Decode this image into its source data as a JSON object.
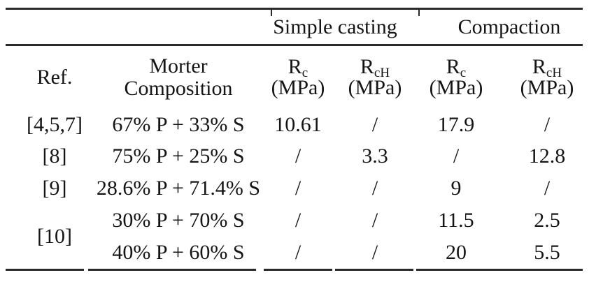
{
  "colors": {
    "text": "#151515",
    "rule": "#2a2a2a"
  },
  "table": {
    "group_headers": [
      {
        "label": "Simple casting"
      },
      {
        "label": "Compaction"
      }
    ],
    "columns": {
      "ref": "Ref.",
      "composition_line1": "Morter",
      "composition_line2": "Composition",
      "measures": [
        {
          "base": "R",
          "sub": "c",
          "unit": "(MPa)"
        },
        {
          "base": "R",
          "sub": "cH",
          "unit": "(MPa)"
        },
        {
          "base": "R",
          "sub": "c",
          "unit": "(MPa)"
        },
        {
          "base": "R",
          "sub": "cH",
          "unit": "(MPa)"
        }
      ]
    },
    "rows": [
      {
        "ref": "[4,5,7]",
        "composition": "67% P + 33% S",
        "sc_rc": "10.61",
        "sc_rch": "/",
        "c_rc": "17.9",
        "c_rch": "/"
      },
      {
        "ref": "[8]",
        "composition": "75% P + 25% S",
        "sc_rc": "/",
        "sc_rch": "3.3",
        "c_rc": "/",
        "c_rch": "12.8"
      },
      {
        "ref": "[9]",
        "composition": "28.6% P + 71.4% S",
        "sc_rc": "/",
        "sc_rch": "/",
        "c_rc": "9",
        "c_rch": "/"
      },
      {
        "ref": "[10]",
        "composition": "30% P + 70% S",
        "sc_rc": "/",
        "sc_rch": "/",
        "c_rc": "11.5",
        "c_rch": "2.5"
      },
      {
        "ref": "",
        "composition": "40% P + 60% S",
        "sc_rc": "/",
        "sc_rch": "/",
        "c_rc": "20",
        "c_rch": "5.5"
      }
    ]
  }
}
